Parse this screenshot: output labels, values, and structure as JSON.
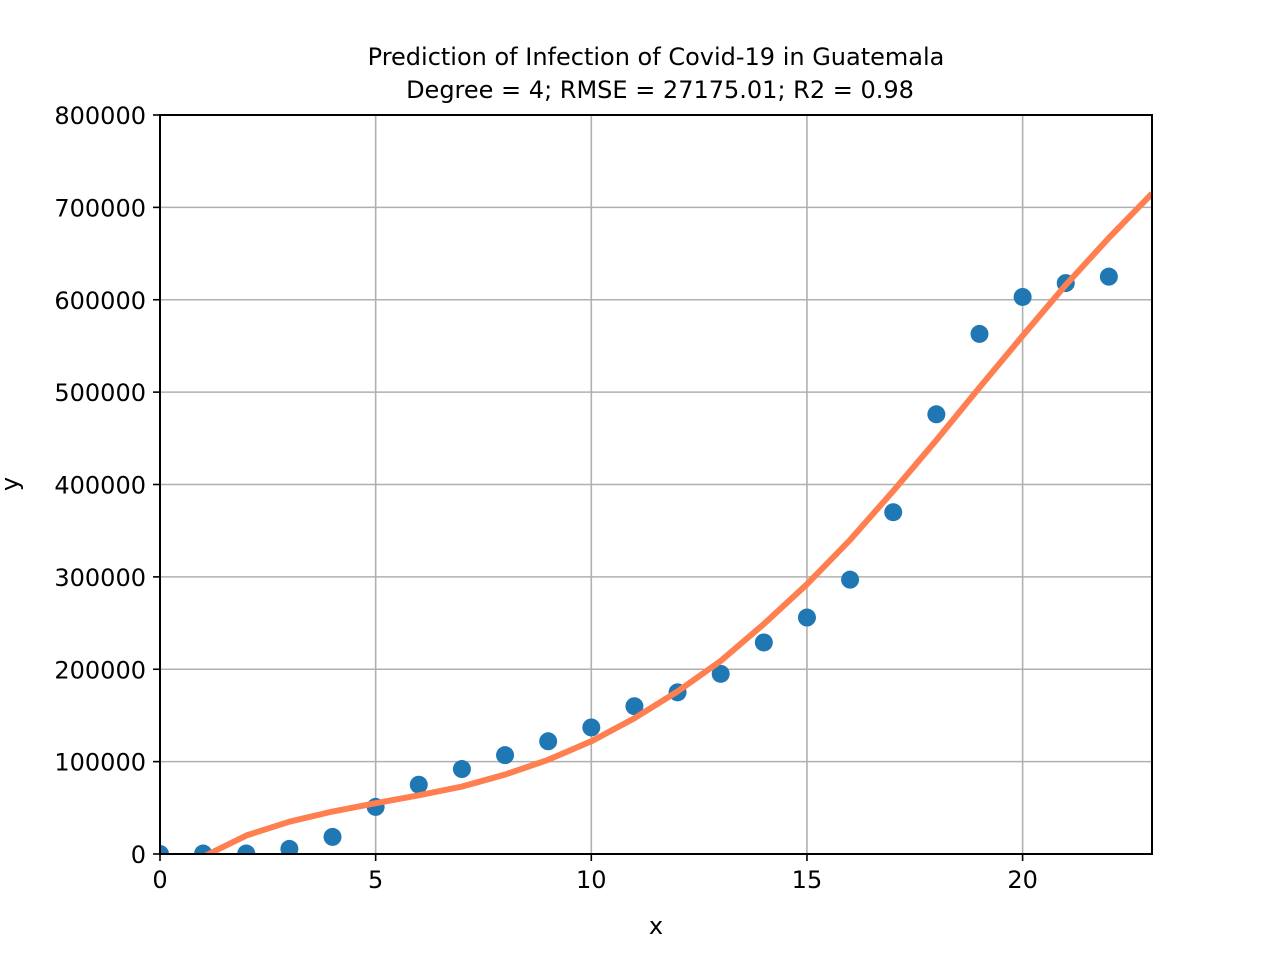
{
  "chart_data": {
    "type": "scatter",
    "title": "Prediction of Infection of Covid-19 in Guatemala",
    "subtitle": "Degree = 4; RMSE = 27175.01; R2 = 0.98",
    "xlabel": "x",
    "ylabel": "y",
    "xlim": [
      0,
      23
    ],
    "ylim": [
      0,
      800000
    ],
    "xticks": [
      0,
      5,
      10,
      15,
      20
    ],
    "xtick_labels": [
      "0",
      "5",
      "10",
      "15",
      "20"
    ],
    "yticks": [
      0,
      100000,
      200000,
      300000,
      400000,
      500000,
      600000,
      700000,
      800000
    ],
    "ytick_labels": [
      "0",
      "100000",
      "200000",
      "300000",
      "400000",
      "500000",
      "600000",
      "700000",
      "800000"
    ],
    "grid": true,
    "series": [
      {
        "kind": "scatter",
        "color": "#1f77b4",
        "x": [
          0,
          1,
          2,
          3,
          4,
          5,
          6,
          7,
          8,
          9,
          10,
          11,
          12,
          13,
          14,
          15,
          16,
          17,
          18,
          19,
          20,
          21,
          22
        ],
        "y": [
          0,
          500,
          500,
          5500,
          18500,
          51000,
          75000,
          92000,
          107000,
          122000,
          137000,
          160000,
          175000,
          195000,
          229000,
          256000,
          297000,
          370000,
          476000,
          563000,
          603000,
          618000,
          625000
        ]
      },
      {
        "kind": "line",
        "color": "#ff7f50",
        "x": [
          1,
          2,
          3,
          4,
          5,
          6,
          7,
          8,
          9,
          10,
          11,
          12,
          13,
          14,
          15,
          16,
          17,
          18,
          19,
          20,
          21,
          22,
          23
        ],
        "y": [
          -3000,
          20000,
          35000,
          46000,
          55000,
          63500,
          73000,
          86000,
          102000,
          122000,
          147000,
          176000,
          209000,
          249000,
          292000,
          340000,
          393000,
          448000,
          505000,
          561000,
          616000,
          667000,
          715000
        ]
      }
    ]
  }
}
